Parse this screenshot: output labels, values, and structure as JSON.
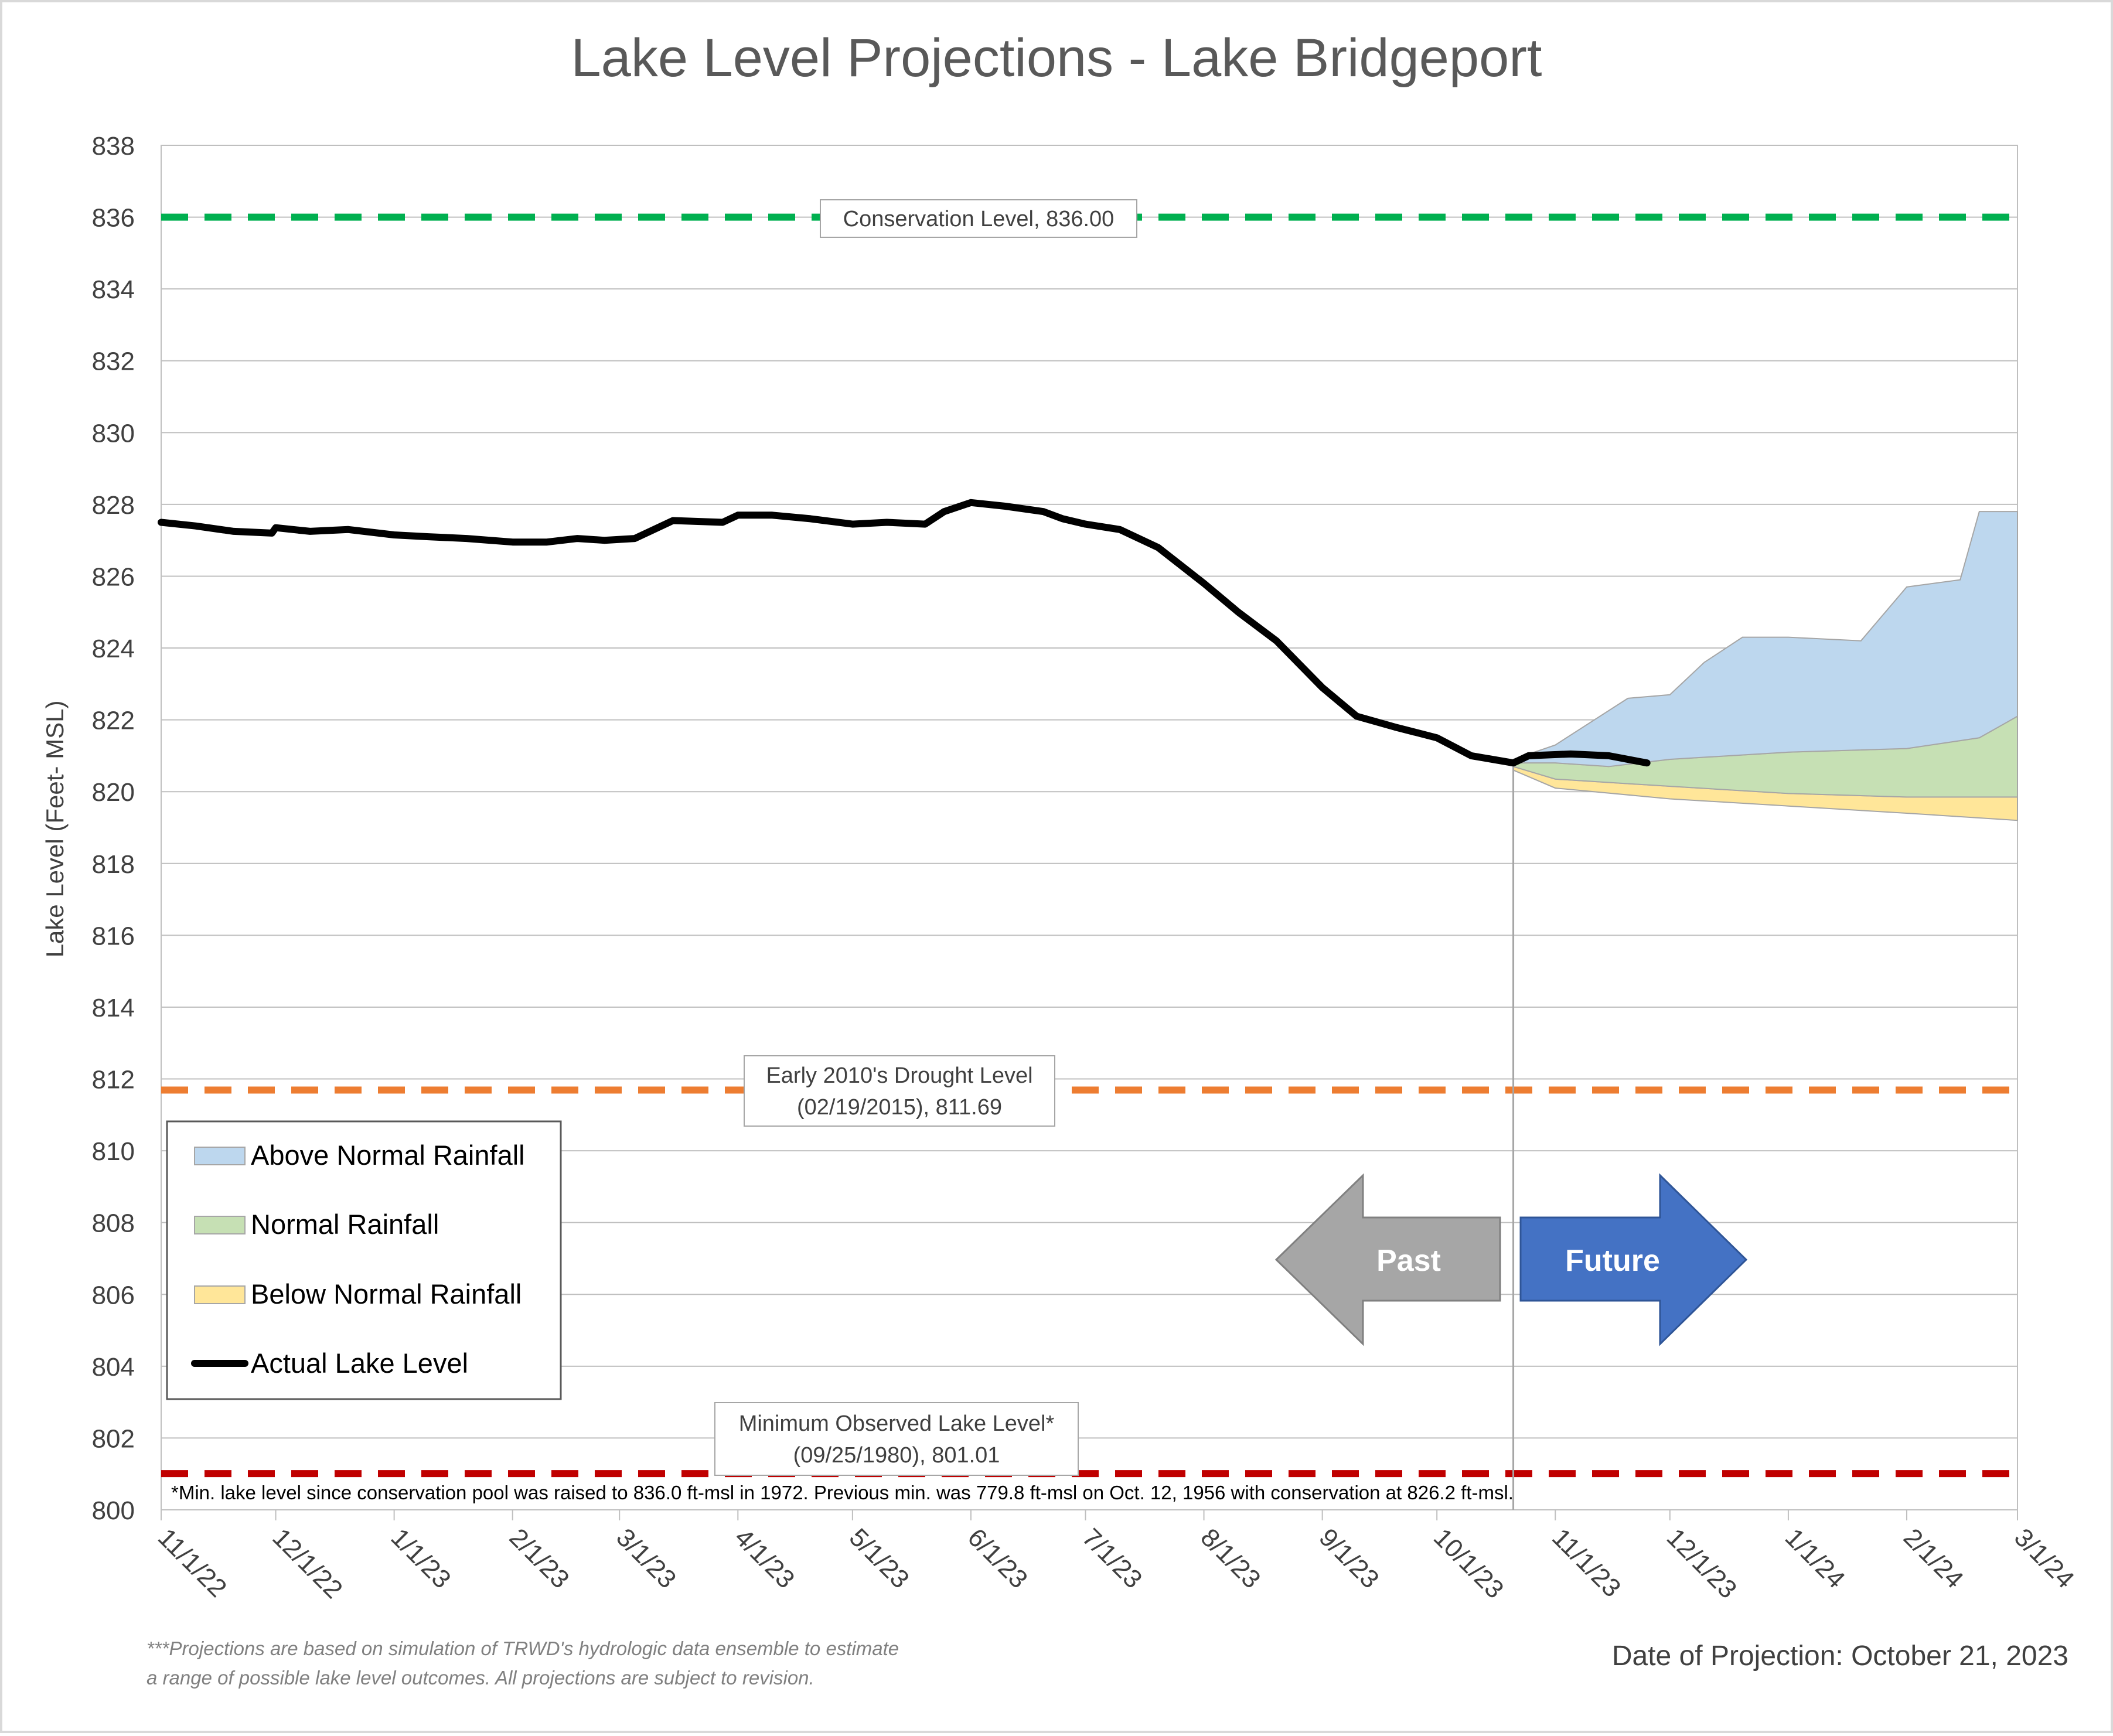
{
  "chart_data": {
    "type": "area",
    "title": "Lake Level Projections - Lake Bridgeport",
    "ylabel": "Lake Level (Feet- MSL)",
    "xlabel": "",
    "ylim": [
      800,
      838
    ],
    "y_ticks": [
      800,
      802,
      804,
      806,
      808,
      810,
      812,
      814,
      816,
      818,
      820,
      822,
      824,
      826,
      828,
      830,
      832,
      834,
      836,
      838
    ],
    "xlim": [
      "2022-11-01",
      "2024-03-01"
    ],
    "x_ticks": [
      {
        "date": "2022-11-01",
        "label": "11/1/22"
      },
      {
        "date": "2022-12-01",
        "label": "12/1/22"
      },
      {
        "date": "2023-01-01",
        "label": "1/1/23"
      },
      {
        "date": "2023-02-01",
        "label": "2/1/23"
      },
      {
        "date": "2023-03-01",
        "label": "3/1/23"
      },
      {
        "date": "2023-04-01",
        "label": "4/1/23"
      },
      {
        "date": "2023-05-01",
        "label": "5/1/23"
      },
      {
        "date": "2023-06-01",
        "label": "6/1/23"
      },
      {
        "date": "2023-07-01",
        "label": "7/1/23"
      },
      {
        "date": "2023-08-01",
        "label": "8/1/23"
      },
      {
        "date": "2023-09-01",
        "label": "9/1/23"
      },
      {
        "date": "2023-10-01",
        "label": "10/1/23"
      },
      {
        "date": "2023-11-01",
        "label": "11/1/23"
      },
      {
        "date": "2023-12-01",
        "label": "12/1/23"
      },
      {
        "date": "2024-01-01",
        "label": "1/1/24"
      },
      {
        "date": "2024-02-01",
        "label": "2/1/24"
      },
      {
        "date": "2024-03-01",
        "label": "3/1/24"
      }
    ],
    "grid": true,
    "legend_position": "bottom-left",
    "legend": [
      {
        "label": "Above Normal Rainfall",
        "color": "#bdd7ee",
        "kind": "area"
      },
      {
        "label": "Normal Rainfall",
        "color": "#c6e0b4",
        "kind": "area"
      },
      {
        "label": "Below Normal Rainfall",
        "color": "#ffe699",
        "kind": "area"
      },
      {
        "label": "Actual Lake Level",
        "color": "#000000",
        "kind": "line"
      }
    ],
    "reference_lines": [
      {
        "name": "conservation",
        "value": 836.0,
        "color": "#00b050",
        "label_lines": [
          "Conservation Level, 836.00"
        ]
      },
      {
        "name": "drought",
        "value": 811.69,
        "color": "#ed7d31",
        "label_lines": [
          "Early 2010's Drought Level",
          "(02/19/2015), 811.69"
        ]
      },
      {
        "name": "minimum",
        "value": 801.01,
        "color": "#c00000",
        "label_lines": [
          "Minimum Observed Lake Level*",
          "(09/25/1980), 801.01"
        ]
      }
    ],
    "divider_date": "2023-10-21",
    "arrows": {
      "past": {
        "label": "Past",
        "color": "#a6a6a6"
      },
      "future": {
        "label": "Future",
        "color": "#4472c4"
      }
    },
    "series": [
      {
        "name": "Actual Lake Level",
        "color": "#000000",
        "points": [
          [
            "2022-11-01",
            827.5
          ],
          [
            "2022-11-10",
            827.4
          ],
          [
            "2022-11-20",
            827.25
          ],
          [
            "2022-11-30",
            827.2
          ],
          [
            "2022-12-01",
            827.35
          ],
          [
            "2022-12-10",
            827.25
          ],
          [
            "2022-12-20",
            827.3
          ],
          [
            "2023-01-01",
            827.15
          ],
          [
            "2023-01-10",
            827.1
          ],
          [
            "2023-01-20",
            827.05
          ],
          [
            "2023-02-01",
            826.95
          ],
          [
            "2023-02-10",
            826.95
          ],
          [
            "2023-02-18",
            827.05
          ],
          [
            "2023-02-25",
            827.0
          ],
          [
            "2023-03-05",
            827.05
          ],
          [
            "2023-03-10",
            827.3
          ],
          [
            "2023-03-15",
            827.55
          ],
          [
            "2023-03-28",
            827.5
          ],
          [
            "2023-04-01",
            827.7
          ],
          [
            "2023-04-10",
            827.7
          ],
          [
            "2023-04-20",
            827.6
          ],
          [
            "2023-05-01",
            827.45
          ],
          [
            "2023-05-10",
            827.5
          ],
          [
            "2023-05-20",
            827.45
          ],
          [
            "2023-05-25",
            827.8
          ],
          [
            "2023-06-01",
            828.05
          ],
          [
            "2023-06-10",
            827.95
          ],
          [
            "2023-06-20",
            827.8
          ],
          [
            "2023-06-25",
            827.6
          ],
          [
            "2023-07-01",
            827.45
          ],
          [
            "2023-07-10",
            827.3
          ],
          [
            "2023-07-20",
            826.8
          ],
          [
            "2023-08-01",
            825.8
          ],
          [
            "2023-08-10",
            825.0
          ],
          [
            "2023-08-20",
            824.2
          ],
          [
            "2023-09-01",
            822.9
          ],
          [
            "2023-09-10",
            822.1
          ],
          [
            "2023-09-20",
            821.8
          ],
          [
            "2023-10-01",
            821.5
          ],
          [
            "2023-10-10",
            821.0
          ],
          [
            "2023-10-21",
            820.8
          ],
          [
            "2023-10-25",
            821.0
          ],
          [
            "2023-11-05",
            821.05
          ],
          [
            "2023-11-15",
            821.0
          ],
          [
            "2023-11-25",
            820.8
          ]
        ]
      },
      {
        "name": "Below Normal Rainfall",
        "color": "#ffe699",
        "band_low": [
          [
            "2023-10-21",
            820.6
          ],
          [
            "2023-11-01",
            820.1
          ],
          [
            "2023-12-01",
            819.8
          ],
          [
            "2024-01-01",
            819.6
          ],
          [
            "2024-02-01",
            819.4
          ],
          [
            "2024-03-01",
            819.2
          ]
        ],
        "band_high": [
          [
            "2023-10-21",
            820.7
          ],
          [
            "2023-11-01",
            820.35
          ],
          [
            "2023-12-01",
            820.15
          ],
          [
            "2024-01-01",
            819.95
          ],
          [
            "2024-02-01",
            819.85
          ],
          [
            "2024-03-01",
            819.85
          ]
        ]
      },
      {
        "name": "Normal Rainfall",
        "color": "#c6e0b4",
        "band_low": [
          [
            "2023-10-21",
            820.7
          ],
          [
            "2023-11-01",
            820.35
          ],
          [
            "2023-12-01",
            820.15
          ],
          [
            "2024-01-01",
            819.95
          ],
          [
            "2024-02-01",
            819.85
          ],
          [
            "2024-03-01",
            819.85
          ]
        ],
        "band_high": [
          [
            "2023-10-21",
            820.8
          ],
          [
            "2023-11-01",
            820.8
          ],
          [
            "2023-11-15",
            820.7
          ],
          [
            "2023-12-01",
            820.9
          ],
          [
            "2024-01-01",
            821.1
          ],
          [
            "2024-02-01",
            821.2
          ],
          [
            "2024-02-20",
            821.5
          ],
          [
            "2024-03-01",
            822.1
          ]
        ]
      },
      {
        "name": "Above Normal Rainfall",
        "color": "#bdd7ee",
        "band_low": [
          [
            "2023-10-21",
            820.8
          ],
          [
            "2023-11-01",
            820.8
          ],
          [
            "2023-11-15",
            820.7
          ],
          [
            "2023-12-01",
            820.9
          ],
          [
            "2024-01-01",
            821.1
          ],
          [
            "2024-02-01",
            821.2
          ],
          [
            "2024-02-20",
            821.5
          ],
          [
            "2024-03-01",
            822.1
          ]
        ],
        "band_high": [
          [
            "2023-10-21",
            820.9
          ],
          [
            "2023-11-01",
            821.3
          ],
          [
            "2023-11-20",
            822.6
          ],
          [
            "2023-12-01",
            822.7
          ],
          [
            "2023-12-10",
            823.6
          ],
          [
            "2023-12-20",
            824.3
          ],
          [
            "2024-01-01",
            824.3
          ],
          [
            "2024-01-20",
            824.2
          ],
          [
            "2024-02-01",
            825.7
          ],
          [
            "2024-02-15",
            825.9
          ],
          [
            "2024-02-20",
            827.8
          ],
          [
            "2024-03-01",
            827.8
          ]
        ]
      }
    ],
    "footnote": "*Min. lake level since conservation pool was raised to 836.0 ft-msl in 1972.  Previous min. was 779.8 ft-msl on Oct. 12, 1956 with conservation at 826.2 ft-msl.",
    "disclaimer_lines": [
      "***Projections are based on simulation of TRWD's hydrologic data ensemble to estimate",
      "a range of possible lake level outcomes.  All projections are subject to revision."
    ],
    "projection_date": "Date of Projection: October 21, 2023"
  }
}
